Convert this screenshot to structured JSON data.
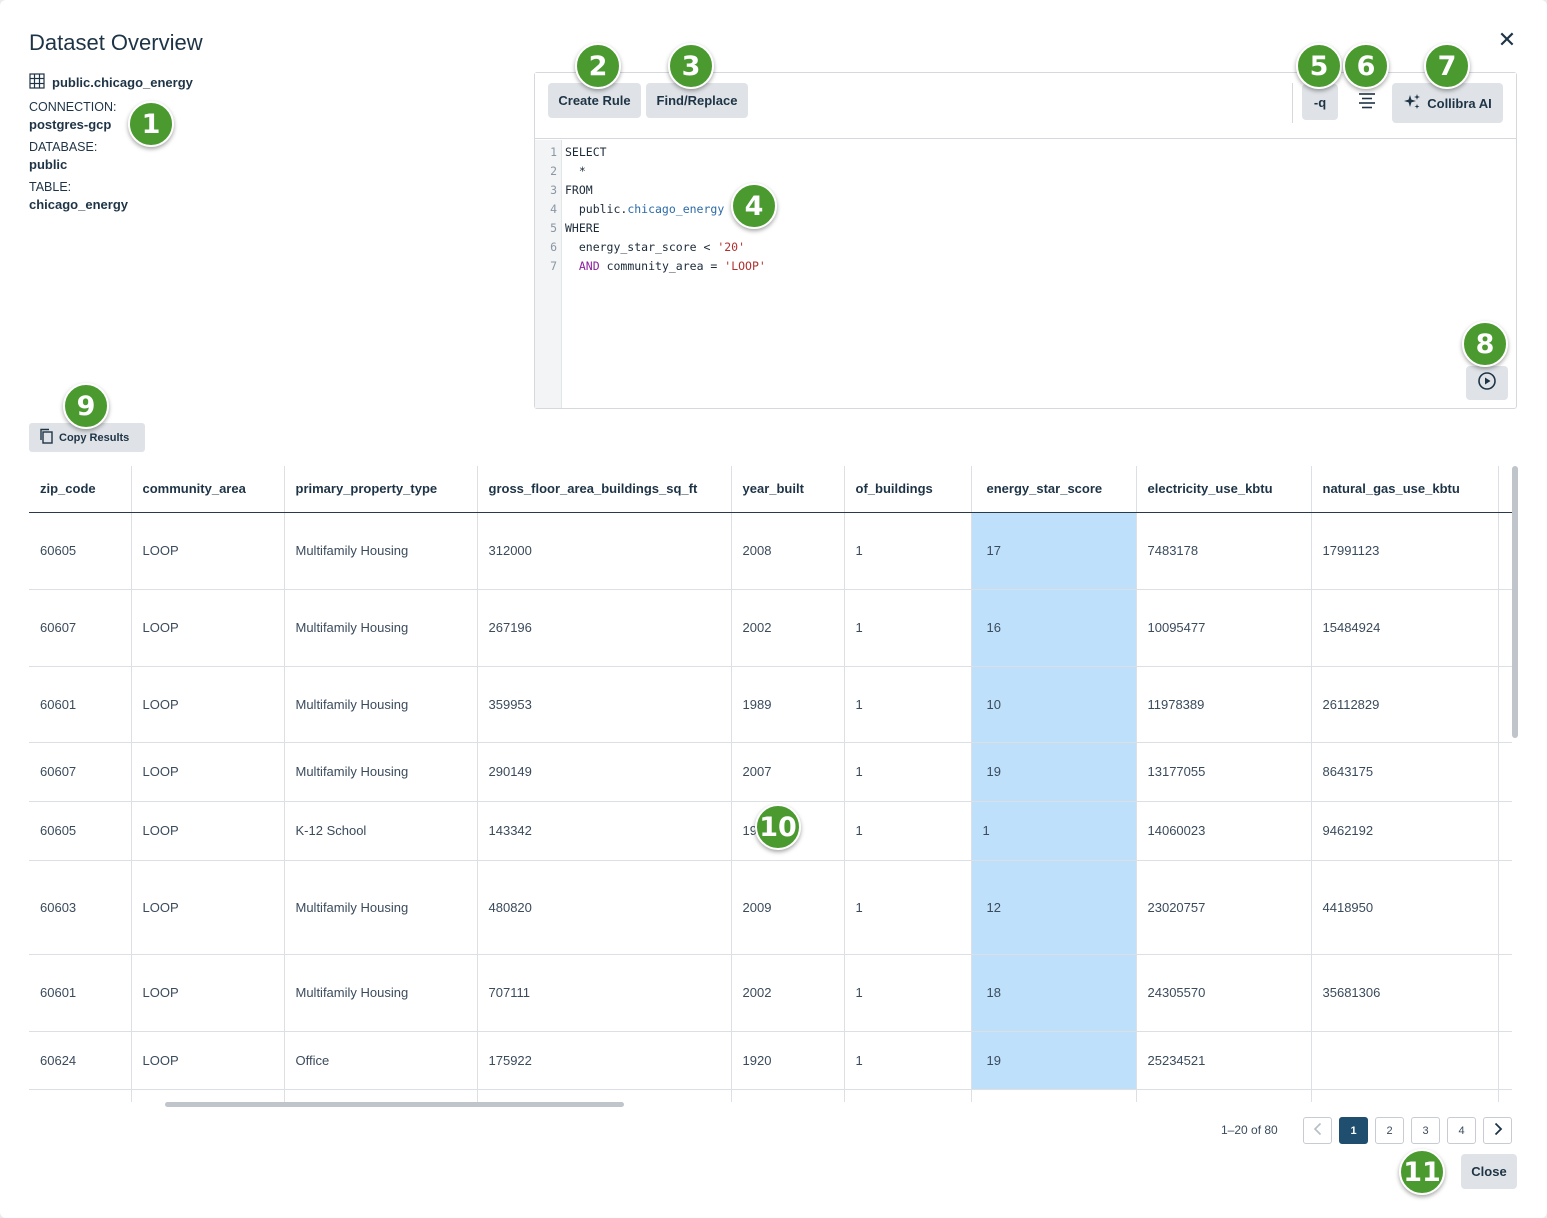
{
  "dialog": {
    "title": "Dataset Overview",
    "close_glyph": "✕"
  },
  "meta": {
    "table_name": "public.chicago_energy",
    "connection_label": "CONNECTION:",
    "connection_value": "postgres-gcp",
    "database_label": "DATABASE:",
    "database_value": "public",
    "table_label": "TABLE:",
    "table_value": "chicago_energy"
  },
  "toolbar": {
    "create_rule": "Create Rule",
    "find_replace": "Find/Replace",
    "q_label": "-q",
    "collibra_ai": "Collibra AI"
  },
  "code": {
    "lines": [
      {
        "n": "1",
        "t": "SELECT"
      },
      {
        "n": "2",
        "t": "  *"
      },
      {
        "n": "3",
        "t": "FROM"
      },
      {
        "n": "4",
        "t": "  public.chicago_energy"
      },
      {
        "n": "5",
        "t": "WHERE"
      },
      {
        "n": "6",
        "t": "  energy_star_score < '20'"
      },
      {
        "n": "7",
        "t": "  AND community_area = 'LOOP'"
      }
    ]
  },
  "results": {
    "copy_label": "Copy Results",
    "columns": [
      "zip_code",
      "community_area",
      "primary_property_type",
      "gross_floor_area_buildings_sq_ft",
      "year_built",
      "of_buildings",
      "energy_star_score",
      "electricity_use_kbtu",
      "natural_gas_use_kbtu"
    ],
    "rows": [
      [
        "60605",
        "LOOP",
        "Multifamily Housing",
        "312000",
        "2008",
        "1",
        "17",
        "7483178",
        "17991123"
      ],
      [
        "60607",
        "LOOP",
        "Multifamily Housing",
        "267196",
        "2002",
        "1",
        "16",
        "10095477",
        "15484924"
      ],
      [
        "60601",
        "LOOP",
        "Multifamily Housing",
        "359953",
        "1989",
        "1",
        "10",
        "11978389",
        "26112829"
      ],
      [
        "60607",
        "LOOP",
        "Multifamily Housing",
        "290149",
        "2007",
        "1",
        "19",
        "13177055",
        "8643175"
      ],
      [
        "60605",
        "LOOP",
        "K-12 School",
        "143342",
        "19",
        "1",
        "1",
        "14060023",
        "9462192"
      ],
      [
        "60603",
        "LOOP",
        "Multifamily Housing",
        "480820",
        "2009",
        "1",
        "12",
        "23020757",
        "4418950"
      ],
      [
        "60601",
        "LOOP",
        "Multifamily Housing",
        "707111",
        "2002",
        "1",
        "18",
        "24305570",
        "35681306"
      ],
      [
        "60624",
        "LOOP",
        "Office",
        "175922",
        "1920",
        "1",
        "19",
        "25234521",
        ""
      ],
      [
        "",
        "",
        "",
        "",
        "",
        "",
        "",
        "",
        ""
      ]
    ]
  },
  "pagination": {
    "range": "1–20 of 80",
    "pages": [
      "1",
      "2",
      "3",
      "4"
    ],
    "active": "1"
  },
  "footer": {
    "close": "Close"
  },
  "callouts": [
    "1",
    "2",
    "3",
    "4",
    "5",
    "6",
    "7",
    "8",
    "9",
    "10",
    "11"
  ],
  "colors": {
    "accent_highlight": "#bfe0fb",
    "callout_green": "#4a9a2f",
    "active_page": "#1f4e6e"
  }
}
